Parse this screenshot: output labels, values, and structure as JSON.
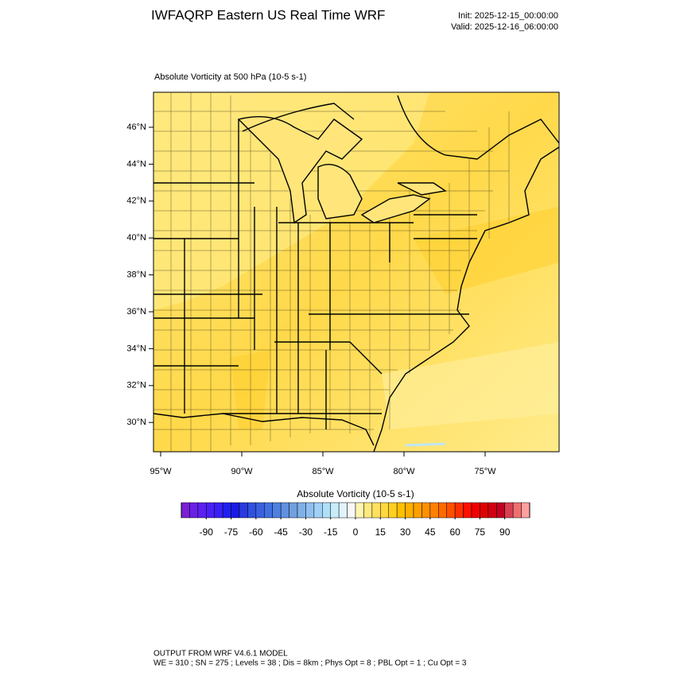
{
  "header": {
    "title": "IWFAQRP Eastern US Real Time WRF",
    "init": "Init: 2025-12-15_00:00:00",
    "valid": "Valid: 2025-12-16_06:00:00"
  },
  "map": {
    "subtitle": "Absolute Vorticity at 500 hPa   (10-5 s-1)",
    "lat_labels": [
      "46°N",
      "44°N",
      "42°N",
      "40°N",
      "38°N",
      "36°N",
      "34°N",
      "32°N",
      "30°N"
    ],
    "lon_labels": [
      "95°W",
      "90°W",
      "85°W",
      "80°W",
      "75°W"
    ]
  },
  "colorbar": {
    "title": "Absolute Vorticity  (10-5 s-1)",
    "lim": [
      -105,
      105
    ],
    "ticks": [
      -90,
      -75,
      -60,
      -45,
      -30,
      -15,
      0,
      15,
      30,
      45,
      60,
      75,
      90
    ],
    "colors": [
      "#7a1fd6",
      "#6a1fe6",
      "#5a20f0",
      "#4a20f5",
      "#3a20f5",
      "#2020f0",
      "#1a1ae6",
      "#2a3ae0",
      "#3050e0",
      "#3a60e0",
      "#4070e0",
      "#5080e0",
      "#6090e0",
      "#70a0e0",
      "#80b0e8",
      "#90c0f0",
      "#a0d0f5",
      "#b0e0f8",
      "#c8ecfa",
      "#e0f4fc",
      "#f8f8f8",
      "#fff5b0",
      "#ffe980",
      "#ffe060",
      "#ffd840",
      "#ffd020",
      "#ffc000",
      "#ffb000",
      "#ffa000",
      "#ff9000",
      "#ff8000",
      "#ff6a00",
      "#ff5000",
      "#ff3000",
      "#ff1000",
      "#f00000",
      "#e00000",
      "#d00010",
      "#c00020",
      "#d84050",
      "#f07070",
      "#ffa0a0"
    ]
  },
  "footer": {
    "line1": "OUTPUT FROM WRF V4.6.1 MODEL",
    "line2": "WE = 310 ; SN = 275 ; Levels = 38 ; Dis = 8km ; Phys Opt = 8 ; PBL Opt = 1 ; Cu Opt = 3"
  }
}
